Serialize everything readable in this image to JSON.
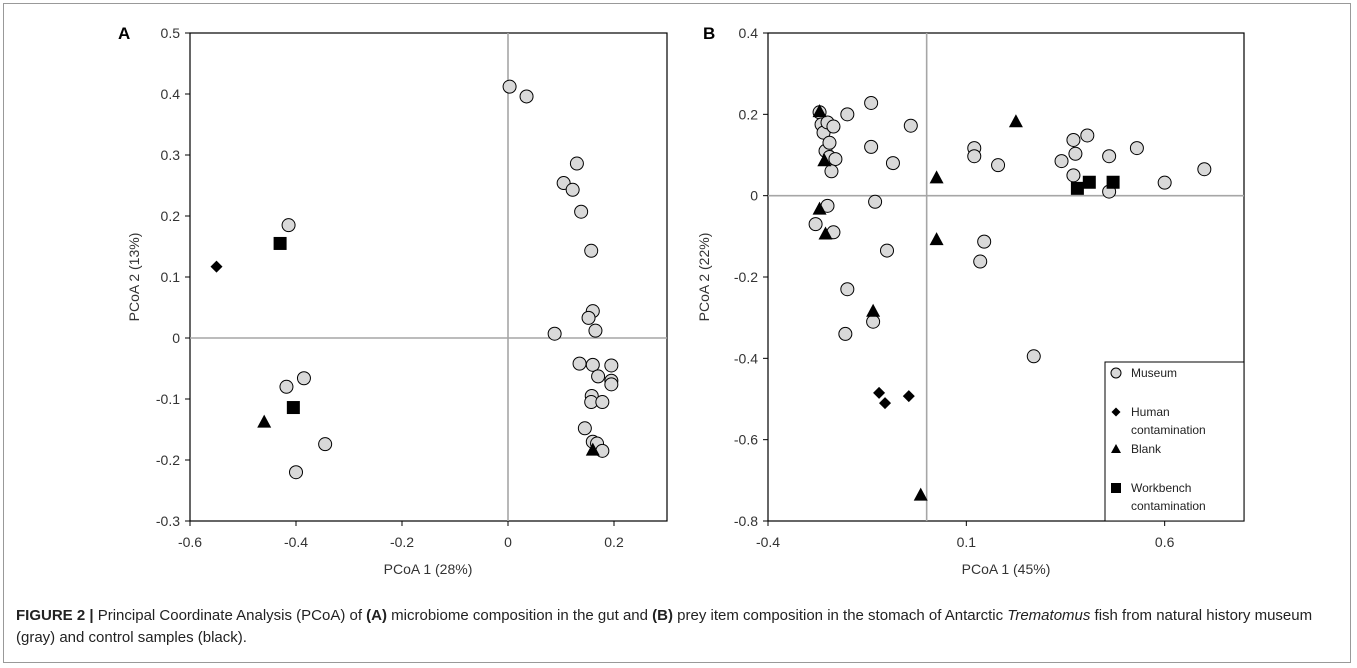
{
  "colors": {
    "museum_fill": "#d9d9d9",
    "marker_stroke": "#000000",
    "control_fill": "#000000",
    "axis_zero": "#a6a6a6"
  },
  "caption": {
    "label": "FIGURE 2 |",
    "part1": " Principal Coordinate Analysis (PCoA) of ",
    "tag_a": "(A)",
    "part2": " microbiome composition in the gut and ",
    "tag_b": "(B)",
    "part3": " prey item composition in the stomach of Antarctic ",
    "genus": "Trematomus",
    "part4": " fish from natural history museum (gray) and control samples (black)."
  },
  "chart_data": [
    {
      "panel": "A",
      "type": "scatter",
      "xlabel": "PCoA 1 (28%)",
      "ylabel": "PCoA 2 (13%)",
      "xlim": [
        -0.6,
        0.3
      ],
      "ylim": [
        -0.3,
        0.5
      ],
      "xticks": [
        -0.6,
        -0.4,
        -0.2,
        0,
        0.2
      ],
      "yticks": [
        -0.3,
        -0.2,
        -0.1,
        0,
        0.1,
        0.2,
        0.3,
        0.4,
        0.5
      ],
      "x_tick_labels": [
        "-0.6",
        "-0.4",
        "-0.2",
        "0",
        "0.2"
      ],
      "y_tick_labels": [
        "-0.3",
        "-0.2",
        "-0.1",
        "0",
        "0.1",
        "0.2",
        "0.3",
        "0.4",
        "0.5"
      ],
      "grid": false,
      "series": [
        {
          "marker": "circle",
          "points": [
            [
              0.003,
              0.412
            ],
            [
              0.035,
              0.396
            ],
            [
              0.13,
              0.286
            ],
            [
              0.105,
              0.254
            ],
            [
              0.122,
              0.243
            ],
            [
              0.138,
              0.207
            ],
            [
              0.157,
              0.143
            ],
            [
              0.16,
              0.044
            ],
            [
              0.152,
              0.033
            ],
            [
              0.165,
              0.012
            ],
            [
              0.088,
              0.007
            ],
            [
              0.135,
              -0.042
            ],
            [
              0.16,
              -0.044
            ],
            [
              0.195,
              -0.045
            ],
            [
              0.17,
              -0.063
            ],
            [
              0.195,
              -0.07
            ],
            [
              0.195,
              -0.076
            ],
            [
              0.158,
              -0.095
            ],
            [
              0.157,
              -0.105
            ],
            [
              0.178,
              -0.105
            ],
            [
              0.145,
              -0.148
            ],
            [
              0.16,
              -0.17
            ],
            [
              0.168,
              -0.173
            ],
            [
              0.178,
              -0.185
            ],
            [
              -0.414,
              0.185
            ],
            [
              -0.385,
              -0.066
            ],
            [
              -0.418,
              -0.08
            ],
            [
              -0.345,
              -0.174
            ],
            [
              -0.4,
              -0.22
            ]
          ]
        },
        {
          "marker": "diamond",
          "points": [
            [
              -0.55,
              0.117
            ]
          ]
        },
        {
          "marker": "triangle",
          "points": [
            [
              -0.46,
              -0.137
            ],
            [
              0.16,
              -0.183
            ]
          ]
        },
        {
          "marker": "square",
          "points": [
            [
              -0.43,
              0.155
            ],
            [
              -0.405,
              -0.114
            ]
          ]
        }
      ]
    },
    {
      "panel": "B",
      "type": "scatter",
      "xlabel": "PCoA 1 (45%)",
      "ylabel": "PCoA 2 (22%)",
      "xlim": [
        -0.4,
        0.8
      ],
      "ylim": [
        -0.8,
        0.4
      ],
      "xticks": [
        -0.4,
        0.1,
        0.6
      ],
      "yticks": [
        -0.8,
        -0.6,
        -0.4,
        -0.2,
        0,
        0.2,
        0.4
      ],
      "x_tick_labels": [
        "-0.4",
        "0.1",
        "0.6"
      ],
      "y_tick_labels": [
        "-0.8",
        "-0.6",
        "-0.4",
        "-0.2",
        "0",
        "0.2",
        "0.4"
      ],
      "grid": false,
      "legend": {
        "position": "bottom-right",
        "entries": [
          {
            "marker": "circle",
            "label": [
              "Museum"
            ]
          },
          {
            "marker": "diamond",
            "label": [
              "Human",
              "contamination"
            ]
          },
          {
            "marker": "triangle",
            "label": [
              "Blank"
            ]
          },
          {
            "marker": "square",
            "label": [
              "Workbench",
              "contamination"
            ]
          }
        ]
      },
      "series": [
        {
          "marker": "circle",
          "points": [
            [
              -0.27,
              0.205
            ],
            [
              -0.265,
              0.175
            ],
            [
              -0.26,
              0.155
            ],
            [
              -0.25,
              0.18
            ],
            [
              -0.235,
              0.17
            ],
            [
              -0.2,
              0.2
            ],
            [
              -0.14,
              0.228
            ],
            [
              -0.255,
              0.11
            ],
            [
              -0.245,
              0.13
            ],
            [
              -0.245,
              0.095
            ],
            [
              -0.23,
              0.09
            ],
            [
              -0.24,
              0.06
            ],
            [
              -0.14,
              0.12
            ],
            [
              -0.04,
              0.172
            ],
            [
              -0.085,
              0.08
            ],
            [
              0.12,
              0.117
            ],
            [
              0.12,
              0.097
            ],
            [
              0.18,
              0.075
            ],
            [
              0.34,
              0.085
            ],
            [
              0.37,
              0.137
            ],
            [
              0.405,
              0.148
            ],
            [
              0.375,
              0.103
            ],
            [
              0.37,
              0.05
            ],
            [
              0.46,
              0.097
            ],
            [
              0.46,
              0.01
            ],
            [
              0.53,
              0.117
            ],
            [
              0.6,
              0.032
            ],
            [
              0.7,
              0.065
            ],
            [
              -0.25,
              -0.025
            ],
            [
              -0.28,
              -0.07
            ],
            [
              -0.235,
              -0.09
            ],
            [
              -0.13,
              -0.015
            ],
            [
              0.145,
              -0.113
            ],
            [
              0.135,
              -0.162
            ],
            [
              -0.2,
              -0.23
            ],
            [
              -0.1,
              -0.135
            ],
            [
              -0.205,
              -0.34
            ],
            [
              -0.135,
              -0.31
            ],
            [
              0.27,
              -0.395
            ]
          ]
        },
        {
          "marker": "diamond",
          "points": [
            [
              -0.12,
              -0.485
            ],
            [
              -0.105,
              -0.51
            ],
            [
              -0.045,
              -0.493
            ]
          ]
        },
        {
          "marker": "triangle",
          "points": [
            [
              -0.27,
              0.208
            ],
            [
              -0.258,
              0.087
            ],
            [
              -0.27,
              -0.032
            ],
            [
              -0.255,
              -0.093
            ],
            [
              0.225,
              0.183
            ],
            [
              0.025,
              0.045
            ],
            [
              0.025,
              -0.107
            ],
            [
              -0.135,
              -0.283
            ],
            [
              -0.015,
              -0.735
            ]
          ]
        },
        {
          "marker": "square",
          "points": [
            [
              0.38,
              0.018
            ],
            [
              0.41,
              0.033
            ],
            [
              0.47,
              0.033
            ]
          ]
        }
      ]
    }
  ]
}
